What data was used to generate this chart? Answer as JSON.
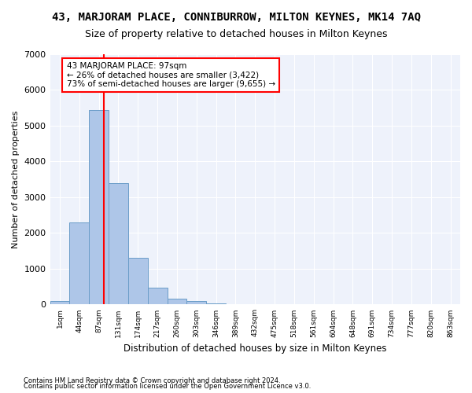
{
  "title": "43, MARJORAM PLACE, CONNIBURROW, MILTON KEYNES, MK14 7AQ",
  "subtitle": "Size of property relative to detached houses in Milton Keynes",
  "xlabel": "Distribution of detached houses by size in Milton Keynes",
  "ylabel": "Number of detached properties",
  "footnote1": "Contains HM Land Registry data © Crown copyright and database right 2024.",
  "footnote2": "Contains public sector information licensed under the Open Government Licence v3.0.",
  "bin_labels": [
    "1sqm",
    "44sqm",
    "87sqm",
    "131sqm",
    "174sqm",
    "217sqm",
    "260sqm",
    "303sqm",
    "346sqm",
    "389sqm",
    "432sqm",
    "475sqm",
    "518sqm",
    "561sqm",
    "604sqm",
    "648sqm",
    "691sqm",
    "734sqm",
    "777sqm",
    "820sqm",
    "863sqm"
  ],
  "bar_values": [
    100,
    2300,
    5450,
    3400,
    1300,
    480,
    170,
    90,
    40,
    10,
    5,
    2,
    1,
    0,
    0,
    0,
    0,
    0,
    0,
    0,
    0
  ],
  "bar_color": "#aec6e8",
  "bar_edge_color": "#6a9dc8",
  "annotation_line1": "43 MARJORAM PLACE: 97sqm",
  "annotation_line2": "← 26% of detached houses are smaller (3,422)",
  "annotation_line3": "73% of semi-detached houses are larger (9,655) →",
  "ylim": [
    0,
    7000
  ],
  "yticks": [
    0,
    1000,
    2000,
    3000,
    4000,
    5000,
    6000,
    7000
  ],
  "title_fontsize": 10,
  "subtitle_fontsize": 9,
  "axis_bg_color": "#eef2fb"
}
